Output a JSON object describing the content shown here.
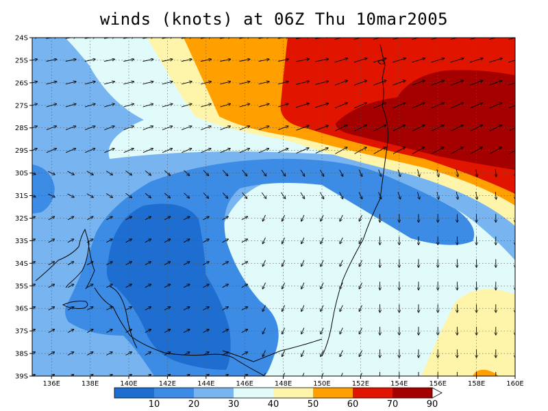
{
  "title": "winds (knots) at 06Z Thu 10mar2005",
  "chart_data": {
    "type": "heatmap",
    "title": "winds (knots) at 06Z Thu 10mar2005",
    "x_ticks": [
      "136E",
      "138E",
      "140E",
      "142E",
      "144E",
      "146E",
      "148E",
      "150E",
      "152E",
      "154E",
      "156E",
      "158E",
      "160E"
    ],
    "y_ticks": [
      "24S",
      "25S",
      "26S",
      "27S",
      "28S",
      "29S",
      "30S",
      "31S",
      "32S",
      "33S",
      "34S",
      "35S",
      "36S",
      "37S",
      "38S",
      "39S"
    ],
    "xlim": [
      135,
      160
    ],
    "ylim": [
      -39,
      -24
    ],
    "grid": true,
    "colorbar": {
      "levels": [
        "10",
        "20",
        "30",
        "40",
        "50",
        "60",
        "70",
        "90"
      ],
      "colors": [
        "#1e6ed2",
        "#3c8ce6",
        "#78b4f0",
        "#e1fafa",
        "#fff5aa",
        "#ffa000",
        "#e11400",
        "#a50000"
      ]
    }
  },
  "colors": {
    "c1": "#1e6ed2",
    "c2": "#3c8ce6",
    "c3": "#78b4f0",
    "c4": "#e1fafa",
    "c5": "#fff5aa",
    "c6": "#ffa000",
    "c7": "#e11400",
    "c8": "#a50000"
  }
}
